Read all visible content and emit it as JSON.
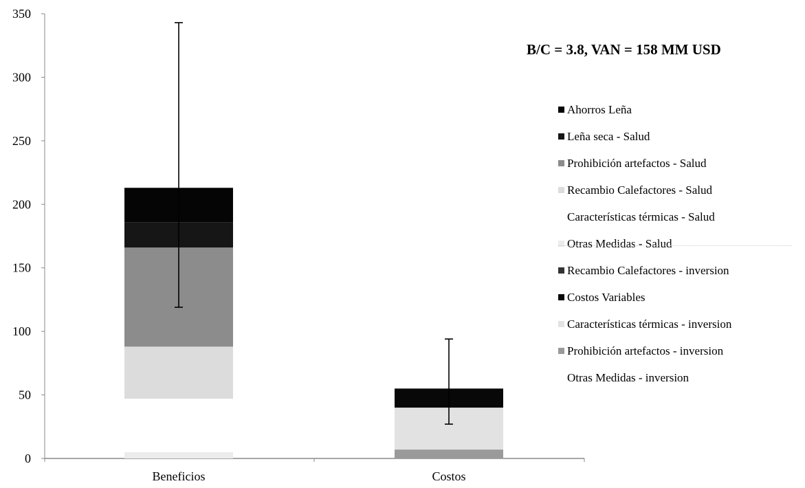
{
  "chart_data": {
    "type": "bar",
    "stacked": true,
    "categories": [
      "Beneficios",
      "Costos"
    ],
    "ylim": [
      0,
      350
    ],
    "yticks": [
      0,
      50,
      100,
      150,
      200,
      250,
      300,
      350
    ],
    "annotation": "B/C = 3.8, VAN = 158 MM USD",
    "legend_position": "right",
    "series": [
      {
        "name": "Ahorros Leña",
        "color": "#050505",
        "values": [
          27,
          0
        ]
      },
      {
        "name": "Leña seca - Salud",
        "color": "#161616",
        "values": [
          20,
          0
        ]
      },
      {
        "name": "Prohibición artefactos - Salud",
        "color": "#8c8c8c",
        "values": [
          78,
          0
        ]
      },
      {
        "name": "Recambio Calefactores - Salud",
        "color": "#dcdcdc",
        "values": [
          41,
          0
        ]
      },
      {
        "name": "Características térmicas - Salud",
        "color": "#ffffff",
        "values": [
          42,
          0
        ]
      },
      {
        "name": "Otras Medidas - Salud",
        "color": "#ececec",
        "values": [
          5,
          0
        ]
      },
      {
        "name": "Recambio Calefactores - inversion",
        "color": "#333333",
        "values": [
          0,
          0
        ]
      },
      {
        "name": "Costos Variables",
        "color": "#080808",
        "values": [
          0,
          15
        ]
      },
      {
        "name": "Características térmicas - inversion",
        "color": "#e2e2e2",
        "values": [
          0,
          33
        ]
      },
      {
        "name": "Prohibición artefactos - inversion",
        "color": "#9a9a9a",
        "values": [
          0,
          7
        ]
      },
      {
        "name": "Otras Medidas - inversion",
        "color": "#ffffff",
        "values": [
          0,
          0
        ]
      }
    ],
    "error_bars": [
      {
        "category": "Beneficios",
        "low": 119,
        "high": 343
      },
      {
        "category": "Costos",
        "low": 27,
        "high": 94
      }
    ]
  }
}
